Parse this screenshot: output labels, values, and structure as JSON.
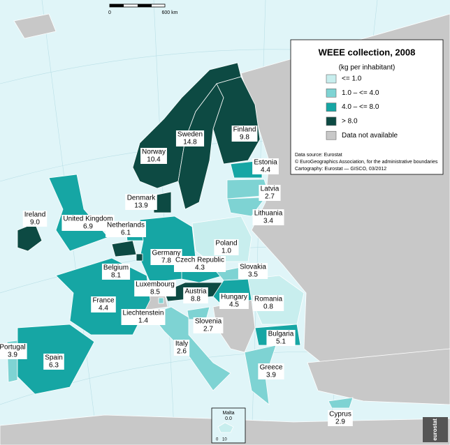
{
  "scale_bar": {
    "start": "0",
    "end": "600 km"
  },
  "legend": {
    "title": "WEEE collection, 2008",
    "subtitle": "(kg per inhabitant)",
    "classes": [
      {
        "label": "<= 1.0",
        "color": "#c8eeee"
      },
      {
        "label": "1.0 – <= 4.0",
        "color": "#7ed3d3"
      },
      {
        "label": "4.0 – <= 8.0",
        "color": "#16a6a4"
      },
      {
        "label": "> 8.0",
        "color": "#0d4a43"
      },
      {
        "label": "Data not available",
        "color": "#c8c8c8"
      }
    ],
    "notes": [
      "Data source: Eurostat",
      "© EuroGeographics Association, for the administrative boundaries",
      "Cartography: Eurostat — GISCO, 03/2012"
    ]
  },
  "countries": [
    {
      "name": "Norway",
      "value": 10.4,
      "class": 3
    },
    {
      "name": "Sweden",
      "value": 14.8,
      "class": 3
    },
    {
      "name": "Finland",
      "value": 9.8,
      "class": 3
    },
    {
      "name": "Estonia",
      "value": 4.4,
      "class": 2
    },
    {
      "name": "Latvia",
      "value": 2.7,
      "class": 1
    },
    {
      "name": "Lithuania",
      "value": 3.4,
      "class": 1
    },
    {
      "name": "Denmark",
      "value": 13.9,
      "class": 3
    },
    {
      "name": "Ireland",
      "value": {
        "value": 9,
        "label": "9.0"
      },
      "class": 3
    },
    {
      "name": "United Kingdom",
      "value": 6.9,
      "class": 2
    },
    {
      "name": "Netherlands",
      "value": 6.1,
      "class": 2
    },
    {
      "name": "Poland",
      "value": {
        "value": 1,
        "label": "1.0"
      },
      "class": 0
    },
    {
      "name": "Germany",
      "value": 7.8,
      "class": 2
    },
    {
      "name": "Czech Republic",
      "value": 4.3,
      "class": 2
    },
    {
      "name": "Slovakia",
      "value": 3.5,
      "class": 1
    },
    {
      "name": "Belgium",
      "value": 8.1,
      "class": 3
    },
    {
      "name": "Luxembourg",
      "value": 8.5,
      "class": 3
    },
    {
      "name": "Austria",
      "value": 8.8,
      "class": 3
    },
    {
      "name": "Hungary",
      "value": 4.5,
      "class": 2
    },
    {
      "name": "Romania",
      "value": 0.8,
      "class": 0
    },
    {
      "name": "France",
      "value": 4.4,
      "class": 2
    },
    {
      "name": "Liechtenstein",
      "value": 1.4,
      "class": 1
    },
    {
      "name": "Slovenia",
      "value": 2.7,
      "class": 1
    },
    {
      "name": "Bulgaria",
      "value": 5.1,
      "class": 2
    },
    {
      "name": "Portugal",
      "value": 3.9,
      "class": 1
    },
    {
      "name": "Italy",
      "value": 2.6,
      "class": 1
    },
    {
      "name": "Spain",
      "value": 6.3,
      "class": 2
    },
    {
      "name": "Greece",
      "value": 3.9,
      "class": 1
    },
    {
      "name": "Cyprus",
      "value": 2.9,
      "class": 1
    },
    {
      "name": "Malta",
      "value": {
        "value": 0,
        "label": "0.0"
      },
      "class": 0
    }
  ],
  "malta_scale": {
    "start": "0",
    "end": "10"
  },
  "logo": "eurostat"
}
